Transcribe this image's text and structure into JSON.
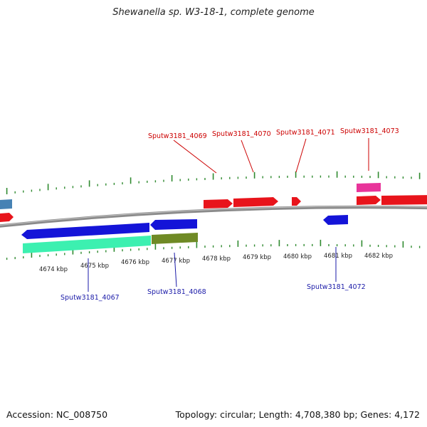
{
  "title": "Shewanella sp. W3-18-1, complete genome",
  "footer": {
    "accession": "Accession: NC_008750",
    "summary": "Topology: circular; Length: 4,708,380 bp; Genes: 4,172"
  },
  "colors": {
    "backbone": "#8a8a8a",
    "ticks": "#2f8a2f",
    "gene_forward": "#e8141b",
    "gene_reverse": "#1414d8",
    "trna": "#e8349a",
    "cds_reverse_light": "#3cf0b0",
    "cds_olive": "#6f8a25",
    "steelblue": "#4682b4"
  },
  "scale": {
    "unit": "kbp",
    "major_ticks": [
      {
        "label": "4674 kbp"
      },
      {
        "label": "4675 kbp"
      },
      {
        "label": "4676 kbp"
      },
      {
        "label": "4677 kbp"
      },
      {
        "label": "4678 kbp"
      },
      {
        "label": "4679 kbp"
      },
      {
        "label": "4680 kbp"
      },
      {
        "label": "4681 kbp"
      },
      {
        "label": "4682 kbp"
      }
    ]
  },
  "gene_labels_forward": [
    {
      "label": "Sputw3181_4069"
    },
    {
      "label": "Sputw3181_4070"
    },
    {
      "label": "Sputw3181_4071"
    },
    {
      "label": "Sputw3181_4073"
    }
  ],
  "gene_labels_reverse": [
    {
      "label": "Sputw3181_4067"
    },
    {
      "label": "Sputw3181_4068"
    },
    {
      "label": "Sputw3181_4072"
    }
  ]
}
